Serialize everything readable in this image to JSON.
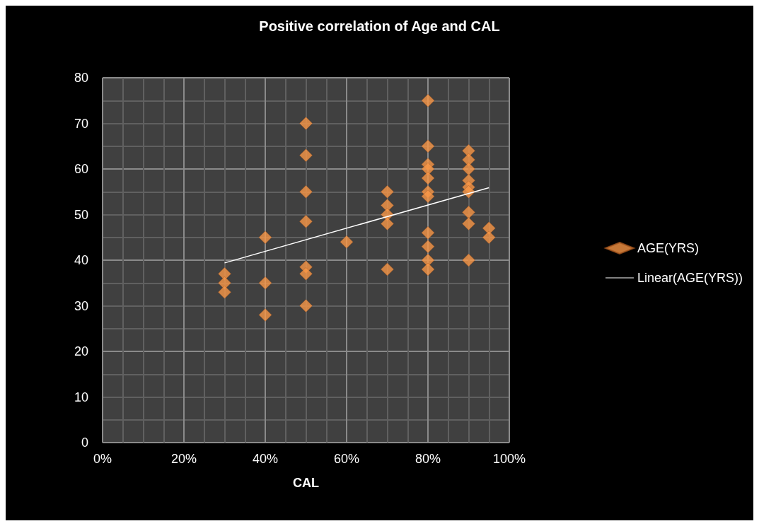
{
  "chart_data": {
    "type": "scatter",
    "title": "Positive correlation of Age and CAL",
    "xlabel": "CAL",
    "series": [
      {
        "name": "AGE(YRS)",
        "color": "#f79646",
        "marker": "diamond",
        "x": [
          30,
          30,
          30,
          40,
          40,
          40,
          50,
          50,
          50,
          50,
          50,
          50,
          50,
          60,
          70,
          70,
          70,
          70,
          70,
          80,
          80,
          80,
          80,
          80,
          80,
          80,
          80,
          80,
          80,
          80,
          90,
          90,
          90,
          90,
          90,
          90,
          90,
          90,
          90,
          95,
          95
        ],
        "values": [
          37,
          35,
          33,
          45,
          35,
          28,
          70,
          63,
          55,
          48.5,
          38.5,
          37,
          30,
          44,
          55,
          52,
          50,
          48,
          38,
          75,
          65,
          61,
          60,
          58,
          55,
          54,
          46,
          43,
          40,
          38,
          64,
          62,
          60,
          57.5,
          56,
          55,
          50.5,
          48,
          40,
          47,
          45
        ]
      },
      {
        "name": "Linear(AGE(YRS))",
        "type": "line",
        "color": "#ffffff",
        "marker": "none",
        "x": [
          30,
          95
        ],
        "values": [
          39.4,
          55.9
        ]
      }
    ],
    "xlim": [
      0,
      100
    ],
    "xticks": [
      {
        "value": 0,
        "label": "0%"
      },
      {
        "value": 20,
        "label": "20%"
      },
      {
        "value": 40,
        "label": "40%"
      },
      {
        "value": 60,
        "label": "60%"
      },
      {
        "value": 80,
        "label": "80%"
      },
      {
        "value": 100,
        "label": "100%"
      }
    ],
    "ylim": [
      0,
      80
    ],
    "yticks": [
      0,
      10,
      20,
      30,
      40,
      50,
      60,
      70,
      80
    ],
    "grid": true,
    "legend": "right"
  }
}
